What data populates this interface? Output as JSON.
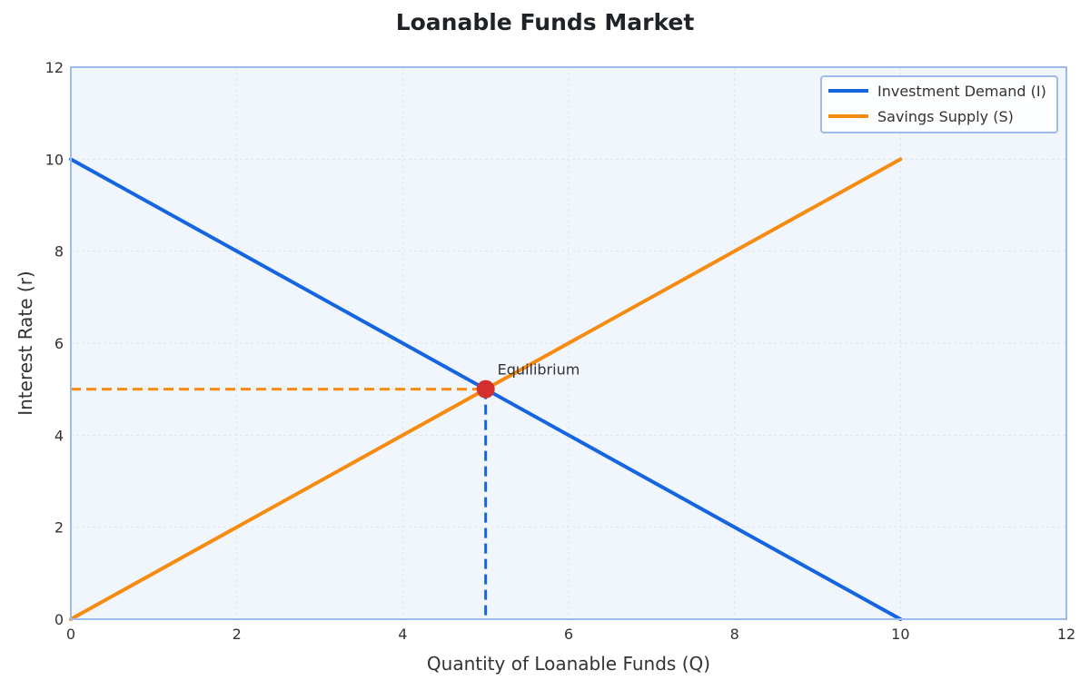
{
  "chart_data": {
    "type": "line",
    "title": "Loanable Funds Market",
    "xlabel": "Quantity of Loanable Funds (Q)",
    "ylabel": "Interest Rate (r)",
    "xlim": [
      0,
      12
    ],
    "ylim": [
      0,
      12
    ],
    "x_ticks": [
      0,
      2,
      4,
      6,
      8,
      10,
      12
    ],
    "y_ticks": [
      0,
      2,
      4,
      6,
      8,
      10,
      12
    ],
    "grid": true,
    "legend_position": "top-right",
    "series": [
      {
        "name": "Investment Demand (I)",
        "color": "#1565e0",
        "x": [
          0,
          10
        ],
        "y": [
          10,
          0
        ]
      },
      {
        "name": "Savings Supply (S)",
        "color": "#f68b10",
        "x": [
          0,
          10
        ],
        "y": [
          0,
          10
        ]
      }
    ],
    "equilibrium": {
      "x": 5,
      "y": 5,
      "label": "Equilibrium",
      "color": "#d32f2f"
    }
  },
  "colors": {
    "plot_background": "#f1f6fc",
    "frame": "#9bbcec",
    "grid": "#dde6f2"
  }
}
